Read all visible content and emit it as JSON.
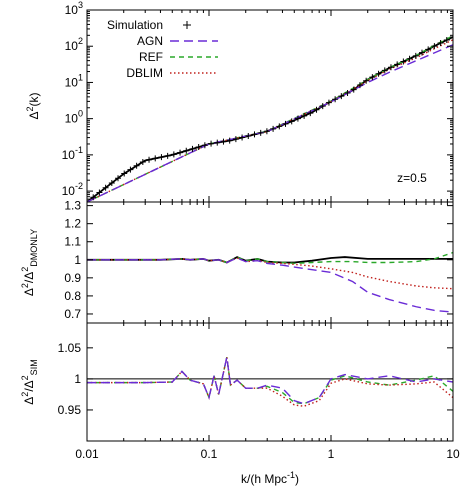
{
  "chart_data": [
    {
      "type": "line",
      "panel": "top",
      "ylabel": "Δ²(k)",
      "yscale": "log",
      "xscale": "log",
      "ylim": [
        0.005,
        1000
      ],
      "xlim": [
        0.01,
        10
      ],
      "ytick_values": [
        0.01,
        0.1,
        1,
        10,
        100,
        1000
      ],
      "ytick_labels": [
        "10",
        "10",
        "10",
        "10",
        "10",
        "10"
      ],
      "ytick_exponents": [
        "-2",
        "-1",
        "0",
        "1",
        "2",
        "3"
      ],
      "annotation": "z=0.5",
      "legend_placement": "top-left",
      "legend": [
        {
          "name": "Simulation",
          "color": "#000000",
          "style": "plus"
        },
        {
          "name": "AGN",
          "color": "#6a2bd6",
          "style": "long-dash"
        },
        {
          "name": "REF",
          "color": "#2aa82a",
          "style": "dash"
        },
        {
          "name": "DBLIM",
          "color": "#c0201c",
          "style": "dot"
        }
      ],
      "series": [
        {
          "name": "Simulation",
          "x": [
            0.01,
            0.02,
            0.03,
            0.05,
            0.07,
            0.1,
            0.15,
            0.2,
            0.3,
            0.5,
            0.7,
            1,
            1.5,
            2,
            3,
            5,
            7,
            10
          ],
          "values": [
            0.005,
            0.03,
            0.07,
            0.1,
            0.14,
            0.2,
            0.25,
            0.32,
            0.45,
            0.9,
            1.5,
            3,
            6,
            12,
            25,
            55,
            100,
            180
          ]
        },
        {
          "name": "AGN",
          "x": [
            0.01,
            0.1,
            0.3,
            1,
            2,
            3,
            5,
            7,
            10
          ],
          "values": [
            0.005,
            0.2,
            0.44,
            2.9,
            10,
            19,
            40,
            65,
            110
          ]
        },
        {
          "name": "REF",
          "x": [
            0.01,
            0.1,
            0.3,
            1,
            2,
            3,
            5,
            7,
            10
          ],
          "values": [
            0.005,
            0.2,
            0.45,
            3.05,
            12,
            25,
            56,
            105,
            195
          ]
        },
        {
          "name": "DBLIM",
          "x": [
            0.01,
            0.1,
            0.3,
            1,
            2,
            3,
            5,
            7,
            10
          ],
          "values": [
            0.005,
            0.2,
            0.44,
            2.95,
            11.2,
            23,
            48,
            85,
            150
          ]
        }
      ]
    },
    {
      "type": "line",
      "panel": "middle",
      "ylabel": "Δ²/Δ²",
      "ylabel_sub": "DMONLY",
      "xscale": "log",
      "xlim": [
        0.01,
        10
      ],
      "ylim": [
        0.65,
        1.32
      ],
      "ytick_values": [
        0.7,
        0.8,
        0.9,
        1,
        1.1,
        1.2,
        1.3
      ],
      "ytick_labels": [
        "0.7",
        "0.8",
        "0.9",
        "1",
        "1.1",
        "1.2",
        "1.3"
      ],
      "series": [
        {
          "name": "Simulation",
          "x": [
            0.01,
            0.04,
            0.06,
            0.07,
            0.09,
            0.1,
            0.12,
            0.14,
            0.17,
            0.2,
            0.25,
            0.3,
            0.4,
            0.5,
            0.7,
            1,
            1.3,
            2,
            3,
            5,
            10
          ],
          "values": [
            1.0,
            1.0,
            1.005,
            1.0,
            1.005,
            0.995,
            1.0,
            0.985,
            1.015,
            0.995,
            1.005,
            0.99,
            0.985,
            0.985,
            0.995,
            1.01,
            1.015,
            1.005,
            1.005,
            1.005,
            1.005
          ]
        },
        {
          "name": "AGN",
          "x": [
            0.01,
            0.04,
            0.06,
            0.07,
            0.09,
            0.1,
            0.12,
            0.14,
            0.17,
            0.2,
            0.25,
            0.3,
            0.4,
            0.5,
            0.7,
            1,
            1.5,
            2,
            3,
            5,
            7,
            10
          ],
          "values": [
            1.0,
            1.0,
            1.005,
            1.0,
            1.005,
            0.995,
            1.0,
            0.985,
            1.01,
            0.99,
            0.995,
            0.98,
            0.97,
            0.96,
            0.945,
            0.93,
            0.88,
            0.82,
            0.78,
            0.74,
            0.72,
            0.71
          ]
        },
        {
          "name": "REF",
          "x": [
            0.01,
            0.04,
            0.06,
            0.07,
            0.09,
            0.1,
            0.12,
            0.14,
            0.17,
            0.2,
            0.25,
            0.3,
            0.4,
            0.5,
            0.7,
            1,
            1.5,
            2,
            3,
            5,
            7,
            10
          ],
          "values": [
            1.0,
            1.0,
            1.005,
            1.0,
            1.005,
            0.995,
            1.0,
            0.985,
            1.015,
            0.995,
            1.005,
            0.99,
            0.985,
            0.98,
            0.985,
            0.99,
            0.99,
            0.985,
            0.985,
            0.99,
            1.005,
            1.04
          ]
        },
        {
          "name": "DBLIM",
          "x": [
            0.01,
            0.04,
            0.06,
            0.07,
            0.09,
            0.1,
            0.12,
            0.14,
            0.17,
            0.2,
            0.25,
            0.3,
            0.4,
            0.5,
            0.7,
            1,
            1.5,
            2,
            3,
            5,
            7,
            10
          ],
          "values": [
            1.0,
            1.0,
            1.005,
            1.0,
            1.005,
            0.995,
            1.0,
            0.985,
            1.01,
            0.99,
            0.995,
            0.985,
            0.98,
            0.975,
            0.965,
            0.95,
            0.93,
            0.905,
            0.88,
            0.855,
            0.845,
            0.84
          ]
        }
      ]
    },
    {
      "type": "line",
      "panel": "bottom",
      "ylabel": "Δ²/Δ²",
      "ylabel_sub": "SIM",
      "xlabel": "k/(h Mpc",
      "xlabel_sup": "-1",
      "xlabel_end": ")",
      "xscale": "log",
      "xlim": [
        0.01,
        10
      ],
      "ylim": [
        0.9,
        1.09
      ],
      "ytick_values": [
        0.95,
        1,
        1.05
      ],
      "ytick_labels": [
        "0.95",
        "1",
        "1.05"
      ],
      "xtick_values": [
        0.01,
        0.1,
        1,
        10
      ],
      "xtick_labels": [
        "0.01",
        "0.1",
        "1",
        "10"
      ],
      "series": [
        {
          "name": "Simulation",
          "x": [
            0.01,
            10
          ],
          "values": [
            1.0,
            1.0
          ]
        },
        {
          "name": "AGN",
          "x": [
            0.01,
            0.03,
            0.05,
            0.06,
            0.07,
            0.09,
            0.1,
            0.11,
            0.12,
            0.14,
            0.15,
            0.17,
            0.2,
            0.25,
            0.3,
            0.4,
            0.5,
            0.6,
            0.8,
            1,
            1.3,
            2,
            3,
            5,
            7,
            10
          ],
          "values": [
            0.994,
            0.994,
            0.995,
            1.012,
            0.998,
            0.992,
            0.97,
            1.005,
            0.975,
            1.035,
            0.99,
            0.998,
            0.985,
            0.985,
            0.99,
            0.985,
            0.965,
            0.96,
            0.97,
            1.0,
            1.007,
            1.0,
            1.005,
            0.995,
            1.0,
            0.995
          ]
        },
        {
          "name": "REF",
          "x": [
            0.01,
            0.03,
            0.05,
            0.06,
            0.07,
            0.09,
            0.1,
            0.11,
            0.12,
            0.14,
            0.15,
            0.17,
            0.2,
            0.25,
            0.3,
            0.4,
            0.5,
            0.6,
            0.8,
            1,
            1.3,
            2,
            3,
            5,
            7,
            10
          ],
          "values": [
            0.994,
            0.994,
            0.995,
            1.012,
            0.998,
            0.992,
            0.97,
            1.005,
            0.975,
            1.035,
            0.99,
            0.998,
            0.985,
            0.985,
            0.988,
            0.978,
            0.962,
            0.96,
            0.97,
            0.998,
            1.005,
            0.995,
            0.99,
            0.998,
            1.005,
            0.98
          ]
        },
        {
          "name": "DBLIM",
          "x": [
            0.01,
            0.03,
            0.05,
            0.06,
            0.07,
            0.09,
            0.1,
            0.11,
            0.12,
            0.14,
            0.15,
            0.17,
            0.2,
            0.25,
            0.3,
            0.4,
            0.5,
            0.6,
            0.8,
            1,
            1.3,
            2,
            3,
            5,
            7,
            10
          ],
          "values": [
            0.994,
            0.994,
            0.995,
            1.012,
            0.998,
            0.992,
            0.97,
            1.005,
            0.975,
            1.035,
            0.99,
            0.998,
            0.985,
            0.985,
            0.985,
            0.972,
            0.958,
            0.956,
            0.965,
            0.993,
            1.0,
            0.992,
            0.99,
            0.992,
            0.995,
            0.97
          ]
        }
      ]
    }
  ]
}
